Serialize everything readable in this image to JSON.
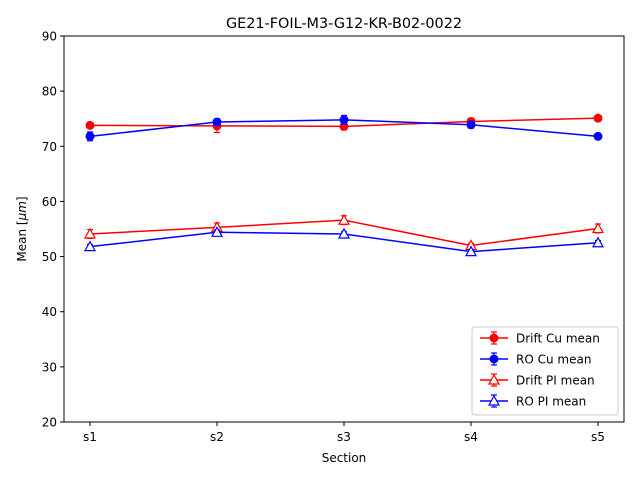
{
  "chart_data": {
    "type": "line",
    "title": "GE21-FOIL-M3-G12-KR-B02-0022",
    "xlabel": "Section",
    "ylabel": "Mean [μm]",
    "ylabel_main": "Mean [",
    "ylabel_unit": "μm",
    "ylabel_close": "]",
    "categories": [
      "s1",
      "s2",
      "s3",
      "s4",
      "s5"
    ],
    "ylim": [
      20,
      90
    ],
    "yticks": [
      20,
      30,
      40,
      50,
      60,
      70,
      80,
      90
    ],
    "grid": false,
    "legend_position": "lower-right",
    "series": [
      {
        "name": "Drift Cu mean",
        "color": "#ff0000",
        "marker": "circle",
        "values": [
          73.8,
          73.7,
          73.6,
          74.5,
          75.1
        ],
        "errors": [
          0.4,
          1.2,
          0.6,
          0.6,
          0.4
        ]
      },
      {
        "name": "RO Cu mean",
        "color": "#0000ff",
        "marker": "circle",
        "values": [
          71.8,
          74.4,
          74.8,
          73.9,
          71.8
        ],
        "errors": [
          0.8,
          0.6,
          0.8,
          0.6,
          0.4
        ]
      },
      {
        "name": "Drift PI mean",
        "color": "#ff0000",
        "marker": "triangle",
        "values": [
          54.1,
          55.3,
          56.6,
          52.0,
          55.1
        ],
        "errors": [
          0.8,
          0.8,
          0.8,
          0.4,
          0.8
        ]
      },
      {
        "name": "RO PI mean",
        "color": "#0000ff",
        "marker": "triangle",
        "values": [
          51.8,
          54.4,
          54.1,
          50.9,
          52.5
        ],
        "errors": [
          0.4,
          0.4,
          0.4,
          0.4,
          0.4
        ]
      }
    ]
  }
}
